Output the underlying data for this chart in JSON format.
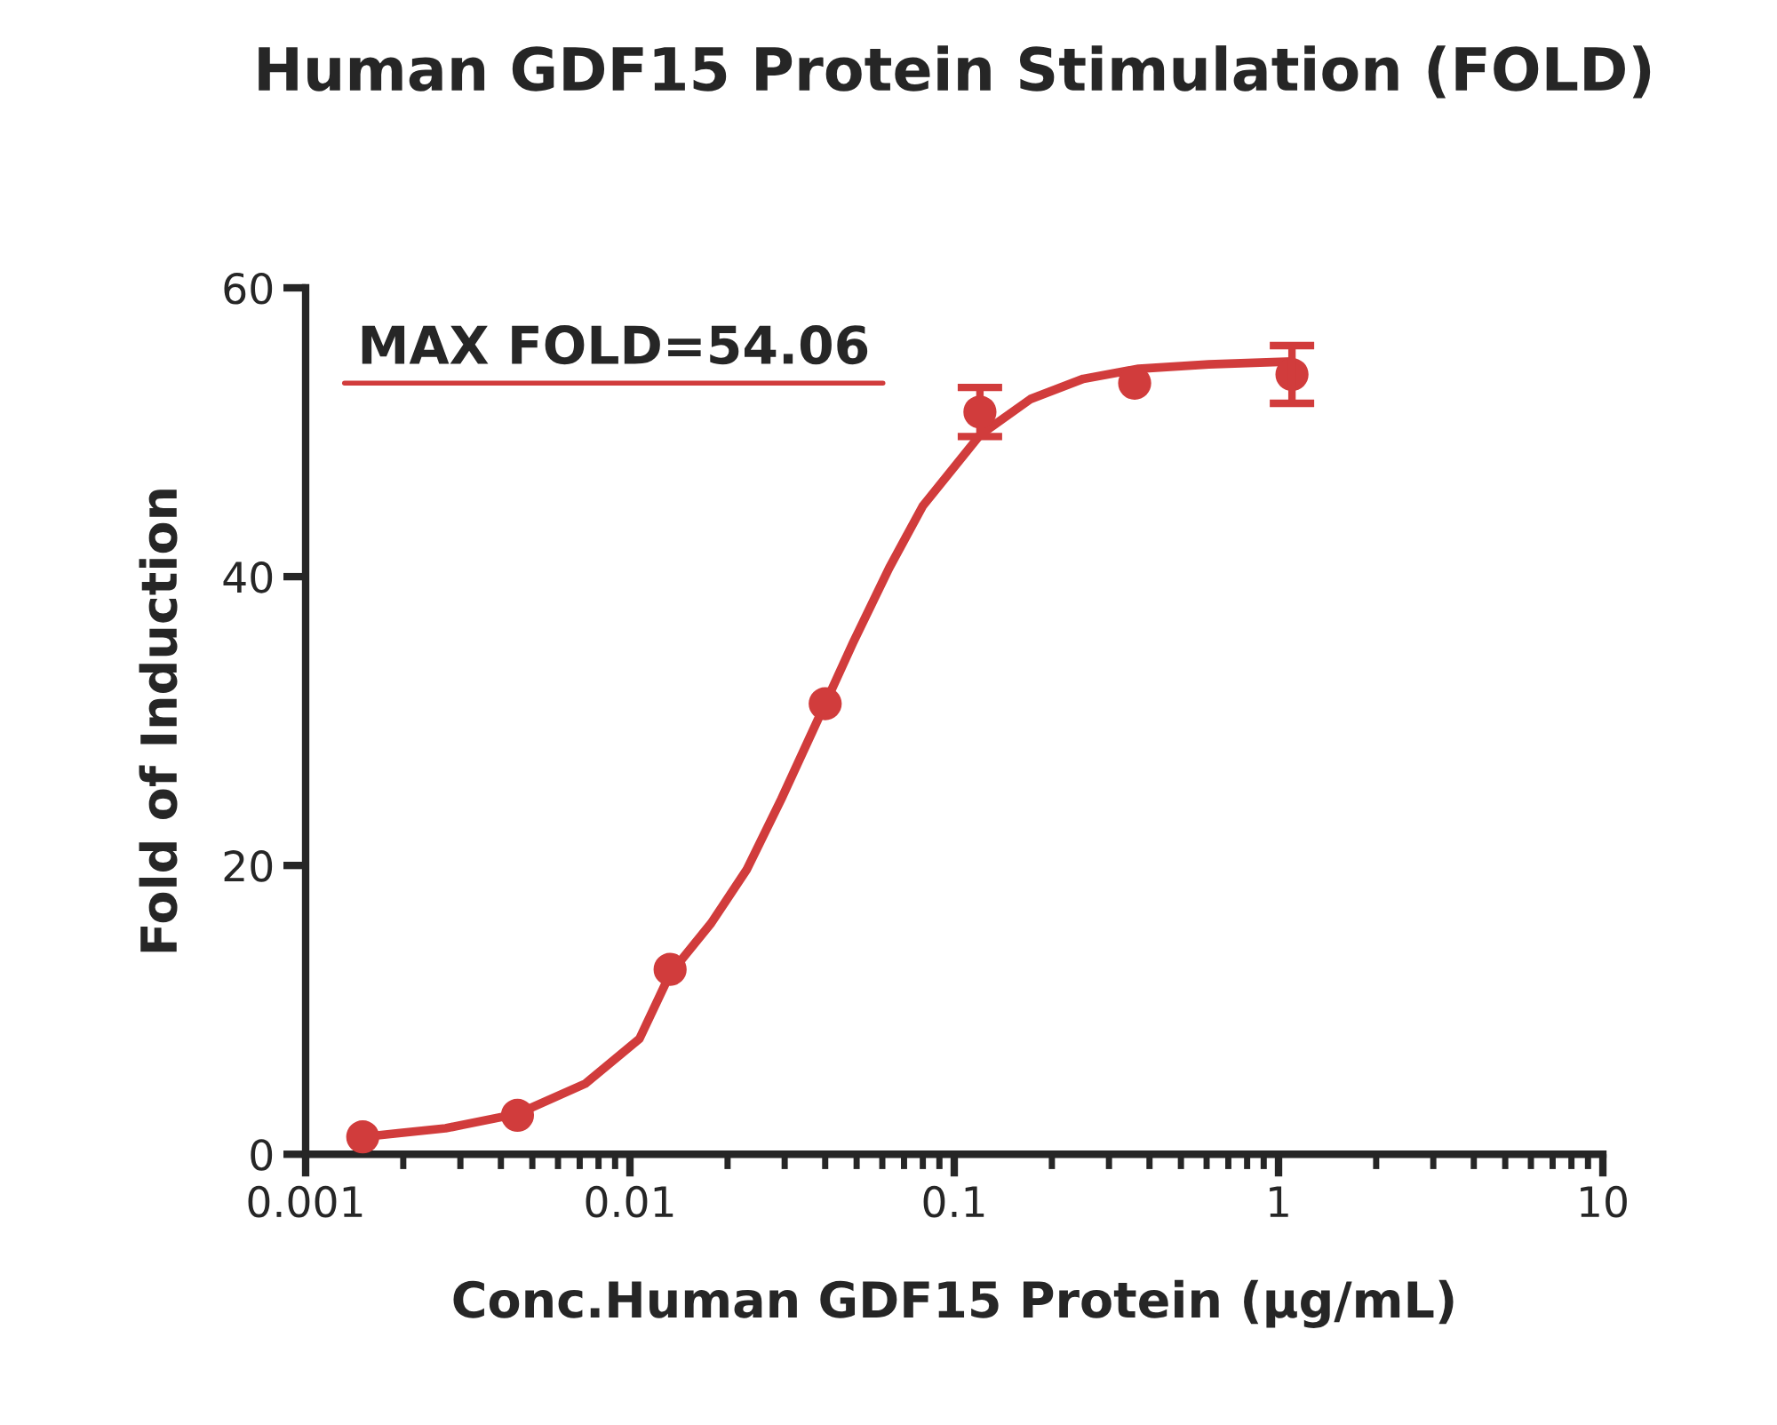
{
  "chart_data": {
    "type": "scatter",
    "title": "Human GDF15 Protein Stimulation (FOLD)",
    "xlabel": "Conc.Human GDF15 Protein (μg/mL)",
    "ylabel": "Fold of Induction",
    "annotations": [
      "MAX FOLD=54.06"
    ],
    "log": "x",
    "xlim": [
      0.001,
      10
    ],
    "xticks": [
      0.001,
      0.01,
      0.1,
      1,
      10
    ],
    "ylim": [
      0,
      60
    ],
    "yticks": [
      0,
      20,
      40,
      60
    ],
    "grid": false,
    "legend": false,
    "series": [
      {
        "marker": "circle",
        "color": "#d13c3c",
        "x": [
          0.0015,
          0.0045,
          0.0133,
          0.04,
          0.12,
          0.36,
          1.1
        ],
        "values": [
          1.2,
          2.7,
          12.8,
          31.2,
          51.4,
          53.4,
          54.0
        ],
        "errors": [
          null,
          null,
          null,
          null,
          1.7,
          null,
          2.0
        ]
      },
      {
        "type": "line",
        "color": "#d13c3c",
        "marker": "none",
        "line_style": "solid",
        "x": [
          0.0015,
          0.0027,
          0.0045,
          0.0073,
          0.0107,
          0.0133,
          0.0178,
          0.0229,
          0.0293,
          0.04,
          0.0487,
          0.063,
          0.08,
          0.12,
          0.172,
          0.25,
          0.37,
          0.61,
          1.1
        ],
        "values": [
          1.2,
          1.8,
          2.8,
          4.9,
          8.0,
          12.5,
          16,
          19.7,
          24.6,
          31.2,
          35.4,
          40.6,
          44.9,
          49.8,
          52.3,
          53.7,
          54.4,
          54.7,
          54.9
        ]
      }
    ]
  }
}
